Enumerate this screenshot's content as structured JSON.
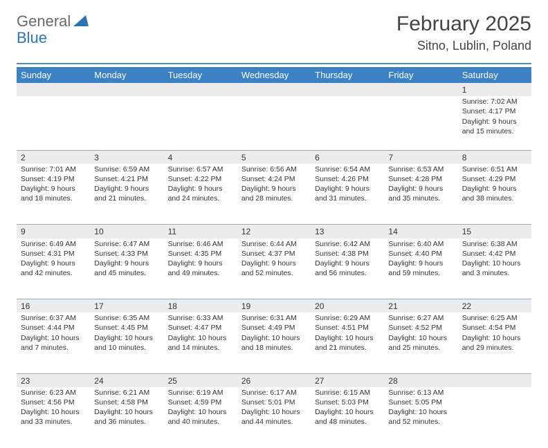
{
  "logo": {
    "part1": "General",
    "part2": "Blue"
  },
  "title": "February 2025",
  "subtitle": "Sitno, Lublin, Poland",
  "colors": {
    "header_bg": "#3b82c4",
    "rule": "#4a89c8",
    "daynum_bg": "#ececec",
    "text": "#333333",
    "logo_gray": "#6a6a6a",
    "logo_blue": "#2e74b5"
  },
  "dayNames": [
    "Sunday",
    "Monday",
    "Tuesday",
    "Wednesday",
    "Thursday",
    "Friday",
    "Saturday"
  ],
  "weeks": [
    [
      null,
      null,
      null,
      null,
      null,
      null,
      {
        "n": "1",
        "sr": "Sunrise: 7:02 AM",
        "ss": "Sunset: 4:17 PM",
        "dl1": "Daylight: 9 hours",
        "dl2": "and 15 minutes."
      }
    ],
    [
      {
        "n": "2",
        "sr": "Sunrise: 7:01 AM",
        "ss": "Sunset: 4:19 PM",
        "dl1": "Daylight: 9 hours",
        "dl2": "and 18 minutes."
      },
      {
        "n": "3",
        "sr": "Sunrise: 6:59 AM",
        "ss": "Sunset: 4:21 PM",
        "dl1": "Daylight: 9 hours",
        "dl2": "and 21 minutes."
      },
      {
        "n": "4",
        "sr": "Sunrise: 6:57 AM",
        "ss": "Sunset: 4:22 PM",
        "dl1": "Daylight: 9 hours",
        "dl2": "and 24 minutes."
      },
      {
        "n": "5",
        "sr": "Sunrise: 6:56 AM",
        "ss": "Sunset: 4:24 PM",
        "dl1": "Daylight: 9 hours",
        "dl2": "and 28 minutes."
      },
      {
        "n": "6",
        "sr": "Sunrise: 6:54 AM",
        "ss": "Sunset: 4:26 PM",
        "dl1": "Daylight: 9 hours",
        "dl2": "and 31 minutes."
      },
      {
        "n": "7",
        "sr": "Sunrise: 6:53 AM",
        "ss": "Sunset: 4:28 PM",
        "dl1": "Daylight: 9 hours",
        "dl2": "and 35 minutes."
      },
      {
        "n": "8",
        "sr": "Sunrise: 6:51 AM",
        "ss": "Sunset: 4:29 PM",
        "dl1": "Daylight: 9 hours",
        "dl2": "and 38 minutes."
      }
    ],
    [
      {
        "n": "9",
        "sr": "Sunrise: 6:49 AM",
        "ss": "Sunset: 4:31 PM",
        "dl1": "Daylight: 9 hours",
        "dl2": "and 42 minutes."
      },
      {
        "n": "10",
        "sr": "Sunrise: 6:47 AM",
        "ss": "Sunset: 4:33 PM",
        "dl1": "Daylight: 9 hours",
        "dl2": "and 45 minutes."
      },
      {
        "n": "11",
        "sr": "Sunrise: 6:46 AM",
        "ss": "Sunset: 4:35 PM",
        "dl1": "Daylight: 9 hours",
        "dl2": "and 49 minutes."
      },
      {
        "n": "12",
        "sr": "Sunrise: 6:44 AM",
        "ss": "Sunset: 4:37 PM",
        "dl1": "Daylight: 9 hours",
        "dl2": "and 52 minutes."
      },
      {
        "n": "13",
        "sr": "Sunrise: 6:42 AM",
        "ss": "Sunset: 4:38 PM",
        "dl1": "Daylight: 9 hours",
        "dl2": "and 56 minutes."
      },
      {
        "n": "14",
        "sr": "Sunrise: 6:40 AM",
        "ss": "Sunset: 4:40 PM",
        "dl1": "Daylight: 9 hours",
        "dl2": "and 59 minutes."
      },
      {
        "n": "15",
        "sr": "Sunrise: 6:38 AM",
        "ss": "Sunset: 4:42 PM",
        "dl1": "Daylight: 10 hours",
        "dl2": "and 3 minutes."
      }
    ],
    [
      {
        "n": "16",
        "sr": "Sunrise: 6:37 AM",
        "ss": "Sunset: 4:44 PM",
        "dl1": "Daylight: 10 hours",
        "dl2": "and 7 minutes."
      },
      {
        "n": "17",
        "sr": "Sunrise: 6:35 AM",
        "ss": "Sunset: 4:45 PM",
        "dl1": "Daylight: 10 hours",
        "dl2": "and 10 minutes."
      },
      {
        "n": "18",
        "sr": "Sunrise: 6:33 AM",
        "ss": "Sunset: 4:47 PM",
        "dl1": "Daylight: 10 hours",
        "dl2": "and 14 minutes."
      },
      {
        "n": "19",
        "sr": "Sunrise: 6:31 AM",
        "ss": "Sunset: 4:49 PM",
        "dl1": "Daylight: 10 hours",
        "dl2": "and 18 minutes."
      },
      {
        "n": "20",
        "sr": "Sunrise: 6:29 AM",
        "ss": "Sunset: 4:51 PM",
        "dl1": "Daylight: 10 hours",
        "dl2": "and 21 minutes."
      },
      {
        "n": "21",
        "sr": "Sunrise: 6:27 AM",
        "ss": "Sunset: 4:52 PM",
        "dl1": "Daylight: 10 hours",
        "dl2": "and 25 minutes."
      },
      {
        "n": "22",
        "sr": "Sunrise: 6:25 AM",
        "ss": "Sunset: 4:54 PM",
        "dl1": "Daylight: 10 hours",
        "dl2": "and 29 minutes."
      }
    ],
    [
      {
        "n": "23",
        "sr": "Sunrise: 6:23 AM",
        "ss": "Sunset: 4:56 PM",
        "dl1": "Daylight: 10 hours",
        "dl2": "and 33 minutes."
      },
      {
        "n": "24",
        "sr": "Sunrise: 6:21 AM",
        "ss": "Sunset: 4:58 PM",
        "dl1": "Daylight: 10 hours",
        "dl2": "and 36 minutes."
      },
      {
        "n": "25",
        "sr": "Sunrise: 6:19 AM",
        "ss": "Sunset: 4:59 PM",
        "dl1": "Daylight: 10 hours",
        "dl2": "and 40 minutes."
      },
      {
        "n": "26",
        "sr": "Sunrise: 6:17 AM",
        "ss": "Sunset: 5:01 PM",
        "dl1": "Daylight: 10 hours",
        "dl2": "and 44 minutes."
      },
      {
        "n": "27",
        "sr": "Sunrise: 6:15 AM",
        "ss": "Sunset: 5:03 PM",
        "dl1": "Daylight: 10 hours",
        "dl2": "and 48 minutes."
      },
      {
        "n": "28",
        "sr": "Sunrise: 6:13 AM",
        "ss": "Sunset: 5:05 PM",
        "dl1": "Daylight: 10 hours",
        "dl2": "and 52 minutes."
      },
      null
    ]
  ]
}
